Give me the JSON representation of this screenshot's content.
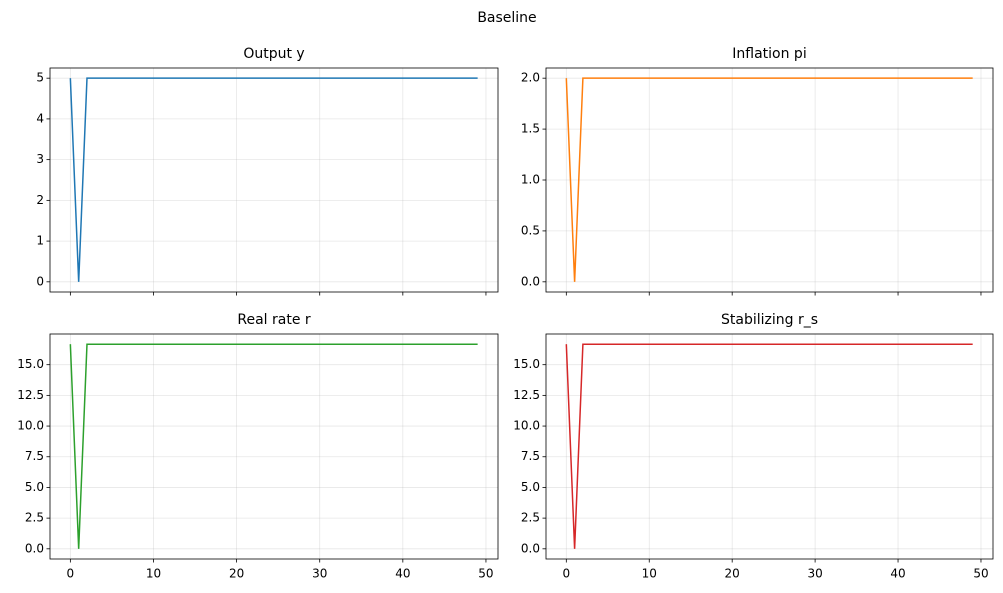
{
  "title": "Baseline",
  "chart_data": [
    {
      "type": "line",
      "title": "Output y",
      "color": "#1f77b4",
      "x": [
        0,
        1,
        2,
        3,
        4,
        5,
        6,
        7,
        8,
        9,
        10,
        11,
        12,
        13,
        14,
        15,
        16,
        17,
        18,
        19,
        20,
        21,
        22,
        23,
        24,
        25,
        26,
        27,
        28,
        29,
        30,
        31,
        32,
        33,
        34,
        35,
        36,
        37,
        38,
        39,
        40,
        41,
        42,
        43,
        44,
        45,
        46,
        47,
        48,
        49
      ],
      "values": [
        5,
        0,
        5,
        5,
        5,
        5,
        5,
        5,
        5,
        5,
        5,
        5,
        5,
        5,
        5,
        5,
        5,
        5,
        5,
        5,
        5,
        5,
        5,
        5,
        5,
        5,
        5,
        5,
        5,
        5,
        5,
        5,
        5,
        5,
        5,
        5,
        5,
        5,
        5,
        5,
        5,
        5,
        5,
        5,
        5,
        5,
        5,
        5,
        5,
        5
      ],
      "xlim": [
        -2.45,
        51.45
      ],
      "xticks": [
        0,
        10,
        20,
        30,
        40,
        50
      ],
      "ylim": [
        -0.25,
        5.25
      ],
      "yticks": [
        0,
        1,
        2,
        3,
        4,
        5
      ],
      "grid": true
    },
    {
      "type": "line",
      "title": "Inflation pi",
      "color": "#ff7f0e",
      "x": [
        0,
        1,
        2,
        3,
        4,
        5,
        6,
        7,
        8,
        9,
        10,
        11,
        12,
        13,
        14,
        15,
        16,
        17,
        18,
        19,
        20,
        21,
        22,
        23,
        24,
        25,
        26,
        27,
        28,
        29,
        30,
        31,
        32,
        33,
        34,
        35,
        36,
        37,
        38,
        39,
        40,
        41,
        42,
        43,
        44,
        45,
        46,
        47,
        48,
        49
      ],
      "values": [
        2,
        0,
        2,
        2,
        2,
        2,
        2,
        2,
        2,
        2,
        2,
        2,
        2,
        2,
        2,
        2,
        2,
        2,
        2,
        2,
        2,
        2,
        2,
        2,
        2,
        2,
        2,
        2,
        2,
        2,
        2,
        2,
        2,
        2,
        2,
        2,
        2,
        2,
        2,
        2,
        2,
        2,
        2,
        2,
        2,
        2,
        2,
        2,
        2,
        2
      ],
      "xlim": [
        -2.45,
        51.45
      ],
      "xticks": [
        0,
        10,
        20,
        30,
        40,
        50
      ],
      "ylim": [
        -0.1,
        2.1
      ],
      "yticks": [
        {
          "value": 0,
          "label": "0.0"
        },
        0.5,
        {
          "value": 1,
          "label": "1.0"
        },
        1.5,
        {
          "value": 2,
          "label": "2.0"
        }
      ],
      "grid": true
    },
    {
      "type": "line",
      "title": "Real rate r",
      "color": "#2ca02c",
      "x": [
        0,
        1,
        2,
        3,
        4,
        5,
        6,
        7,
        8,
        9,
        10,
        11,
        12,
        13,
        14,
        15,
        16,
        17,
        18,
        19,
        20,
        21,
        22,
        23,
        24,
        25,
        26,
        27,
        28,
        29,
        30,
        31,
        32,
        33,
        34,
        35,
        36,
        37,
        38,
        39,
        40,
        41,
        42,
        43,
        44,
        45,
        46,
        47,
        48,
        49
      ],
      "values": [
        16.67,
        0,
        16.67,
        16.67,
        16.67,
        16.67,
        16.67,
        16.67,
        16.67,
        16.67,
        16.67,
        16.67,
        16.67,
        16.67,
        16.67,
        16.67,
        16.67,
        16.67,
        16.67,
        16.67,
        16.67,
        16.67,
        16.67,
        16.67,
        16.67,
        16.67,
        16.67,
        16.67,
        16.67,
        16.67,
        16.67,
        16.67,
        16.67,
        16.67,
        16.67,
        16.67,
        16.67,
        16.67,
        16.67,
        16.67,
        16.67,
        16.67,
        16.67,
        16.67,
        16.67,
        16.67,
        16.67,
        16.67,
        16.67,
        16.67
      ],
      "xlim": [
        -2.45,
        51.45
      ],
      "xticks": [
        0,
        10,
        20,
        30,
        40,
        50
      ],
      "ylim": [
        -0.83,
        17.5
      ],
      "yticks": [
        {
          "value": 0,
          "label": "0.0"
        },
        2.5,
        {
          "value": 5,
          "label": "5.0"
        },
        7.5,
        {
          "value": 10,
          "label": "10.0"
        },
        12.5,
        {
          "value": 15,
          "label": "15.0"
        }
      ],
      "grid": true
    },
    {
      "type": "line",
      "title": "Stabilizing r_s",
      "color": "#d62728",
      "x": [
        0,
        1,
        2,
        3,
        4,
        5,
        6,
        7,
        8,
        9,
        10,
        11,
        12,
        13,
        14,
        15,
        16,
        17,
        18,
        19,
        20,
        21,
        22,
        23,
        24,
        25,
        26,
        27,
        28,
        29,
        30,
        31,
        32,
        33,
        34,
        35,
        36,
        37,
        38,
        39,
        40,
        41,
        42,
        43,
        44,
        45,
        46,
        47,
        48,
        49
      ],
      "values": [
        16.67,
        0,
        16.67,
        16.67,
        16.67,
        16.67,
        16.67,
        16.67,
        16.67,
        16.67,
        16.67,
        16.67,
        16.67,
        16.67,
        16.67,
        16.67,
        16.67,
        16.67,
        16.67,
        16.67,
        16.67,
        16.67,
        16.67,
        16.67,
        16.67,
        16.67,
        16.67,
        16.67,
        16.67,
        16.67,
        16.67,
        16.67,
        16.67,
        16.67,
        16.67,
        16.67,
        16.67,
        16.67,
        16.67,
        16.67,
        16.67,
        16.67,
        16.67,
        16.67,
        16.67,
        16.67,
        16.67,
        16.67,
        16.67,
        16.67
      ],
      "xlim": [
        -2.45,
        51.45
      ],
      "xticks": [
        0,
        10,
        20,
        30,
        40,
        50
      ],
      "ylim": [
        -0.83,
        17.5
      ],
      "yticks": [
        {
          "value": 0,
          "label": "0.0"
        },
        2.5,
        {
          "value": 5,
          "label": "5.0"
        },
        7.5,
        {
          "value": 10,
          "label": "10.0"
        },
        12.5,
        {
          "value": 15,
          "label": "15.0"
        }
      ],
      "grid": true
    }
  ]
}
